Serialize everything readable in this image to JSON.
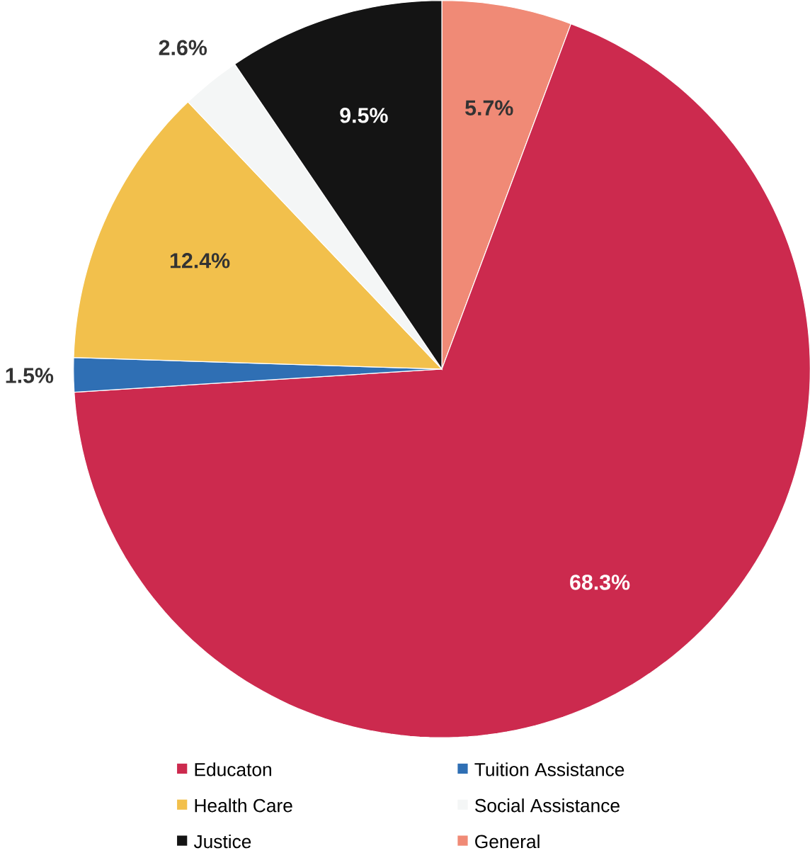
{
  "chart_data": {
    "type": "pie",
    "categories": [
      "General",
      "Educaton",
      "Tuition Assistance",
      "Health Care",
      "Social Assistance",
      "Justice"
    ],
    "values": [
      5.7,
      68.3,
      1.5,
      12.4,
      2.6,
      9.5
    ],
    "value_labels": [
      "5.7%",
      "68.3%",
      "1.5%",
      "12.4%",
      "2.6%",
      "9.5%"
    ],
    "colors": [
      "#f08a76",
      "#cc2a4e",
      "#2f6fb4",
      "#f2c04c",
      "#f4f6f6",
      "#141414"
    ],
    "legend": "bottom"
  }
}
